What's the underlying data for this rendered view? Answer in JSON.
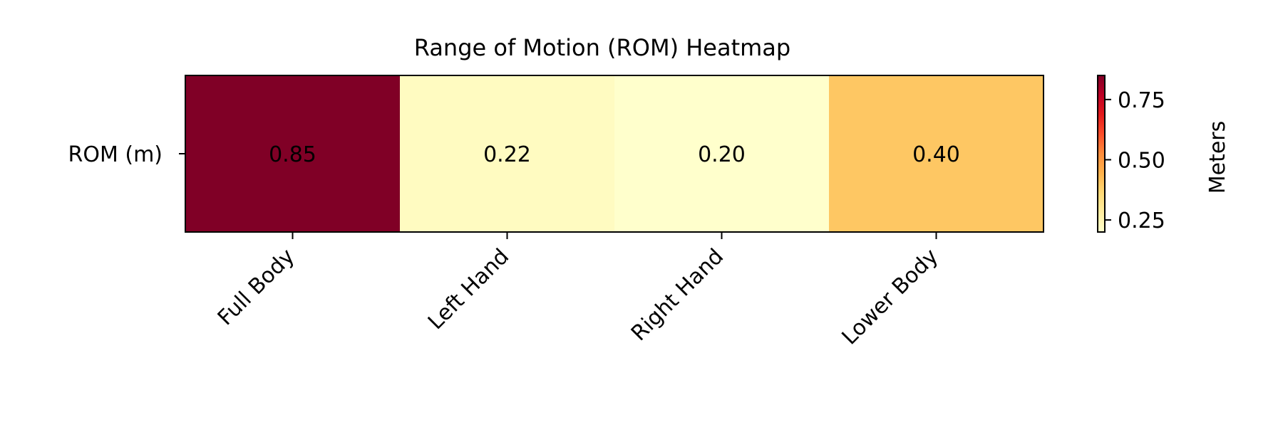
{
  "chart_data": {
    "type": "heatmap",
    "title": "Range of Motion (ROM) Heatmap",
    "rows": [
      "ROM (m)"
    ],
    "columns": [
      "Full Body",
      "Left Hand",
      "Right Hand",
      "Lower Body"
    ],
    "values": [
      [
        0.85,
        0.22,
        0.2,
        0.4
      ]
    ],
    "cell_labels": [
      [
        "0.85",
        "0.22",
        "0.20",
        "0.40"
      ]
    ],
    "colorbar": {
      "label": "Meters",
      "range": [
        0.2,
        0.85
      ],
      "ticks": [
        0.25,
        0.5,
        0.75
      ],
      "tick_labels": [
        "0.25",
        "0.50",
        "0.75"
      ],
      "colormap": "YlOrRd"
    }
  }
}
